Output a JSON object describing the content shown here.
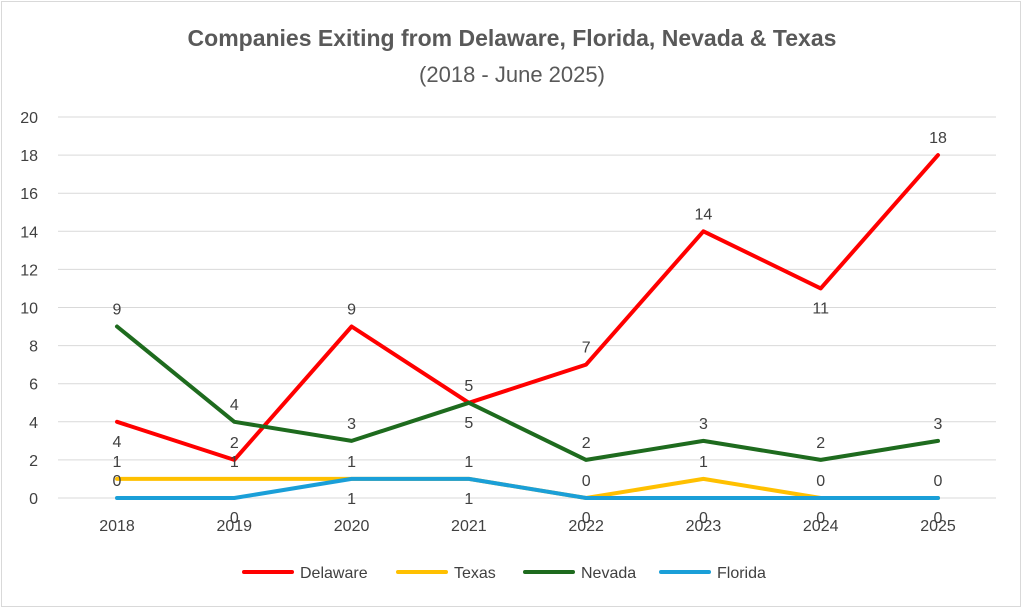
{
  "chart_data": {
    "type": "line",
    "title": "Companies Exiting from Delaware, Florida, Nevada & Texas",
    "subtitle": "(2018 - June 2025)",
    "categories": [
      "2018",
      "2019",
      "2020",
      "2021",
      "2022",
      "2023",
      "2024",
      "2025"
    ],
    "ylim": [
      0,
      20
    ],
    "yticks": [
      "0",
      "2",
      "4",
      "6",
      "8",
      "10",
      "12",
      "14",
      "16",
      "18",
      "20"
    ],
    "grid": true,
    "legend_position": "bottom",
    "series": [
      {
        "name": "Delaware",
        "color": "#ff0000",
        "values": [
          4,
          2,
          9,
          5,
          7,
          14,
          11,
          18
        ],
        "label_side": [
          "below",
          "above",
          "above",
          "below",
          "above",
          "above",
          "below",
          "above"
        ]
      },
      {
        "name": "Texas",
        "color": "#ffc000",
        "values": [
          1,
          1,
          1,
          1,
          0,
          1,
          0,
          0
        ],
        "label_side": [
          "above",
          "above",
          "above",
          "above",
          "above",
          "above",
          "above",
          "above"
        ]
      },
      {
        "name": "Nevada",
        "color": "#1e6b1e",
        "values": [
          9,
          4,
          3,
          5,
          2,
          3,
          2,
          3
        ],
        "label_side": [
          "above",
          "above",
          "above",
          "above",
          "above",
          "above",
          "above",
          "above"
        ]
      },
      {
        "name": "Florida",
        "color": "#1a9fd8",
        "values": [
          0,
          0,
          1,
          1,
          0,
          0,
          0,
          0
        ],
        "label_side": [
          "above",
          "below",
          "below",
          "below",
          "below",
          "below",
          "below",
          "below"
        ]
      }
    ]
  }
}
